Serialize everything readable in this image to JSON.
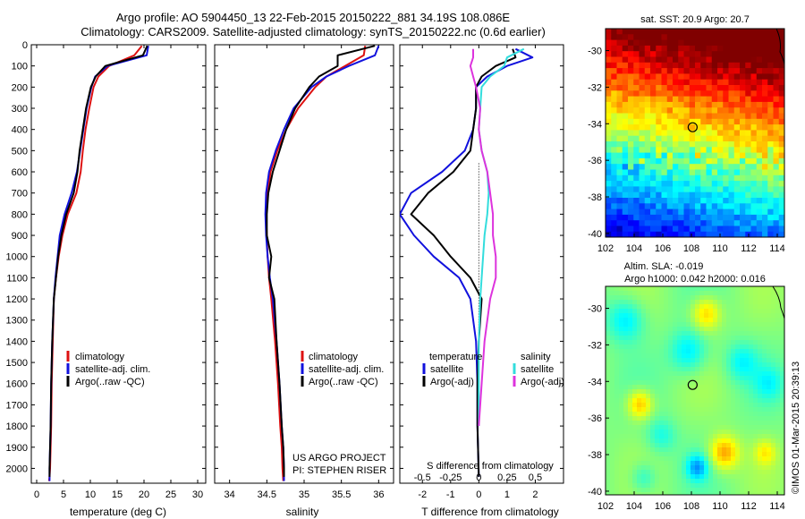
{
  "header": {
    "line1": "Argo profile: AO 5904450_13 22-Feb-2015 20150222_881 34.19S 108.086E",
    "line2": "Climatology: CARS2009. Satellite-adjusted climatology: synTS_20150222.nc (0.6d earlier)"
  },
  "colors": {
    "climatology": "#dd1111",
    "satellite": "#1111dd",
    "argo": "#000000",
    "sal_satellite": "#33dddd",
    "sal_argo": "#dd33dd"
  },
  "project": {
    "line1": "US ARGO PROJECT",
    "line2": "PI: STEPHEN RISER"
  },
  "imos_credit": "©IMOS 01-Mar-2015 20:39:13",
  "chart_data": [
    {
      "type": "line",
      "panel": "temperature",
      "xlabel": "temperature (deg C)",
      "xlim": [
        -1,
        31.5
      ],
      "xticks": [
        0,
        5,
        10,
        15,
        20,
        25,
        30
      ],
      "ylim": [
        0,
        2070
      ],
      "yticks": [
        0,
        100,
        200,
        300,
        400,
        500,
        600,
        700,
        800,
        900,
        1000,
        1100,
        1200,
        1300,
        1400,
        1500,
        1600,
        1700,
        1800,
        1900,
        2000
      ],
      "legend": [
        "climatology",
        "satellite-adj. clim.",
        "Argo(..raw -QC)"
      ],
      "series": [
        {
          "name": "climatology",
          "color": "#dd1111",
          "x": [
            19.6,
            18.2,
            13.5,
            11.5,
            10.6,
            9.8,
            9.1,
            8.6,
            8.2,
            7.4,
            5.8,
            4.8,
            4.1,
            3.6,
            3.2,
            3.0,
            2.8,
            2.7,
            2.6,
            2.5,
            2.4,
            2.3
          ],
          "y": [
            5,
            50,
            100,
            150,
            200,
            300,
            400,
            500,
            600,
            700,
            800,
            900,
            1000,
            1100,
            1200,
            1400,
            1600,
            1800,
            1900,
            2000,
            2040,
            2060
          ]
        },
        {
          "name": "satellite-adj. clim.",
          "color": "#1111dd",
          "x": [
            20.8,
            20.5,
            13.2,
            10.9,
            10.2,
            9.3,
            8.7,
            8.1,
            7.5,
            6.5,
            5.2,
            4.3,
            3.9,
            3.5,
            3.2,
            2.9,
            2.7,
            2.6,
            2.5,
            2.4,
            2.4
          ],
          "y": [
            5,
            50,
            100,
            150,
            200,
            300,
            400,
            500,
            600,
            700,
            800,
            900,
            1000,
            1100,
            1200,
            1400,
            1600,
            1800,
            1900,
            2000,
            2060
          ]
        },
        {
          "name": "Argo(..raw -QC)",
          "color": "#000000",
          "x": [
            20.6,
            19.8,
            12.8,
            11.0,
            10.1,
            9.2,
            8.6,
            8.0,
            7.6,
            6.9,
            5.5,
            4.6,
            4.0,
            3.6,
            3.2,
            2.9,
            2.7,
            2.6,
            2.5,
            2.4,
            2.4
          ],
          "y": [
            5,
            50,
            100,
            150,
            200,
            300,
            400,
            500,
            600,
            700,
            800,
            900,
            1000,
            1100,
            1200,
            1400,
            1600,
            1800,
            1900,
            2000,
            2040
          ]
        }
      ]
    },
    {
      "type": "line",
      "panel": "salinity",
      "xlabel": "salinity",
      "xlim": [
        33.8,
        36.2
      ],
      "xticks": [
        34,
        34.5,
        35,
        35.5,
        36
      ],
      "ylim": [
        0,
        2070
      ],
      "yticks": [
        0,
        100,
        200,
        300,
        400,
        500,
        600,
        700,
        800,
        900,
        1000,
        1100,
        1200,
        1300,
        1400,
        1500,
        1600,
        1700,
        1800,
        1900,
        2000
      ],
      "legend": [
        "climatology",
        "satellite-adj. clim.",
        "Argo(..raw -QC)"
      ],
      "series": [
        {
          "name": "climatology",
          "color": "#dd1111",
          "x": [
            35.82,
            35.8,
            35.55,
            35.3,
            35.15,
            34.92,
            34.76,
            34.64,
            34.55,
            34.51,
            34.49,
            34.5,
            34.51,
            34.53,
            34.56,
            34.61,
            34.65,
            34.68,
            34.7,
            34.71,
            34.72
          ],
          "y": [
            5,
            50,
            100,
            150,
            200,
            300,
            400,
            500,
            600,
            700,
            800,
            900,
            1000,
            1100,
            1200,
            1400,
            1600,
            1800,
            1900,
            2000,
            2060
          ]
        },
        {
          "name": "satellite-adj. clim.",
          "color": "#1111dd",
          "x": [
            36.0,
            35.95,
            35.6,
            35.3,
            35.1,
            34.86,
            34.73,
            34.62,
            34.53,
            34.49,
            34.48,
            34.49,
            34.51,
            34.54,
            34.58,
            34.63,
            34.67,
            34.7,
            34.72,
            34.73,
            34.73
          ],
          "y": [
            5,
            50,
            100,
            150,
            200,
            300,
            400,
            500,
            600,
            700,
            800,
            900,
            1000,
            1100,
            1200,
            1400,
            1600,
            1800,
            1900,
            2000,
            2060
          ]
        },
        {
          "name": "Argo(..raw -QC)",
          "color": "#000000",
          "x": [
            35.95,
            35.45,
            35.45,
            35.2,
            35.07,
            34.88,
            34.76,
            34.67,
            34.58,
            34.52,
            34.5,
            34.5,
            34.56,
            34.53,
            34.6,
            34.63,
            34.67,
            34.7,
            34.72,
            34.73,
            34.73
          ],
          "y": [
            5,
            50,
            100,
            150,
            200,
            300,
            400,
            500,
            600,
            700,
            800,
            900,
            1000,
            1100,
            1200,
            1400,
            1600,
            1800,
            1900,
            2000,
            2040
          ]
        }
      ]
    },
    {
      "type": "line",
      "panel": "difference",
      "xlabel_bottom": "T difference from climatology",
      "xlabel_top": "S difference from climatology",
      "xlim": [
        -2.8,
        3.0
      ],
      "xticks": [
        -2,
        -1,
        0,
        1,
        2
      ],
      "s_tick_labels": [
        "-0.5",
        "-0.25",
        "0",
        "0.25",
        "0.5"
      ],
      "s_ticks_T_equiv": [
        -2,
        -1,
        0,
        1,
        2
      ],
      "ylim": [
        0,
        2070
      ],
      "legend_temperature": {
        "title": "temperature",
        "items": [
          "satellite",
          "Argo(-adj)"
        ]
      },
      "legend_salinity": {
        "title": "salinity",
        "items": [
          "satellite",
          "Argo(-adj)"
        ]
      },
      "series": [
        {
          "name": "T satellite",
          "color": "#1111dd",
          "x": [
            1.3,
            1.9,
            1.0,
            0.3,
            -0.1,
            -0.1,
            -0.2,
            -0.5,
            -1.3,
            -2.4,
            -2.8,
            -2.3,
            -1.6,
            -0.7,
            -0.3,
            -0.1,
            -0.05,
            -0.05,
            0.0
          ],
          "y": [
            20,
            60,
            100,
            150,
            200,
            300,
            400,
            500,
            600,
            700,
            800,
            900,
            1000,
            1100,
            1200,
            1400,
            1600,
            1800,
            2040
          ]
        },
        {
          "name": "T Argo(-adj)",
          "color": "#000000",
          "x": [
            1.2,
            1.3,
            0.6,
            0.1,
            -0.1,
            -0.1,
            -0.2,
            -0.3,
            -0.9,
            -1.8,
            -2.4,
            -1.6,
            -1.0,
            -0.3,
            0.1,
            0.0,
            -0.05,
            -0.05,
            0.0
          ],
          "y": [
            20,
            60,
            100,
            150,
            200,
            300,
            400,
            500,
            600,
            700,
            800,
            900,
            1000,
            1100,
            1200,
            1400,
            1600,
            1800,
            2040
          ]
        },
        {
          "name": "S satellite",
          "color": "#33dddd",
          "x": [
            1.6,
            1.0,
            0.9,
            0.4,
            0.1,
            0.05,
            0.0,
            0.1,
            0.3,
            0.35,
            0.3,
            0.2,
            0.15,
            0.1,
            0.05,
            0.0,
            0.0,
            0.0
          ],
          "y": [
            20,
            60,
            100,
            150,
            200,
            300,
            400,
            500,
            600,
            700,
            800,
            900,
            1000,
            1100,
            1200,
            1400,
            1600,
            1800
          ]
        },
        {
          "name": "S Argo(-adj)",
          "color": "#dd33dd",
          "x": [
            -0.2,
            -0.2,
            -0.3,
            -0.2,
            -0.1,
            0.05,
            0.0,
            0.1,
            0.3,
            0.4,
            0.5,
            0.5,
            0.6,
            0.6,
            0.4,
            0.2,
            0.1,
            0.0
          ],
          "y": [
            20,
            60,
            100,
            150,
            200,
            300,
            400,
            500,
            600,
            700,
            800,
            900,
            1000,
            1100,
            1200,
            1400,
            1600,
            1800
          ]
        }
      ]
    },
    {
      "type": "heatmap",
      "panel": "sst_map",
      "title": "sat. SST: 20.9 Argo: 20.7",
      "xlim": [
        102,
        114.5
      ],
      "ylim": [
        -40.2,
        -28.8
      ],
      "xticks": [
        102,
        104,
        106,
        108,
        110,
        112,
        114
      ],
      "yticks": [
        -30,
        -32,
        -34,
        -36,
        -38,
        -40
      ],
      "marker": {
        "lon": 108.086,
        "lat": -34.19
      }
    },
    {
      "type": "heatmap",
      "panel": "sla_map",
      "title_line1": "Altim. SLA: -0.019",
      "title_line2": "Argo h1000: 0.042 h2000: 0.016",
      "xlim": [
        102,
        114.5
      ],
      "ylim": [
        -40.2,
        -28.8
      ],
      "xticks": [
        102,
        104,
        106,
        108,
        110,
        112,
        114
      ],
      "yticks": [
        -30,
        -32,
        -34,
        -36,
        -38,
        -40
      ],
      "marker": {
        "lon": 108.086,
        "lat": -34.19
      }
    }
  ]
}
